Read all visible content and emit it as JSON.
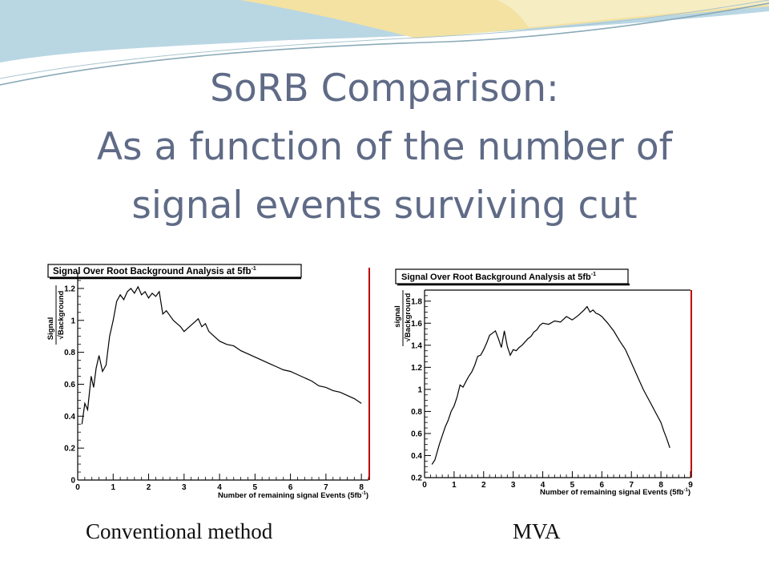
{
  "slide": {
    "title_lines": [
      "SoRB  Comparison:",
      "As a function of the number of",
      "signal events surviving cut"
    ],
    "caption_left": "Conventional method",
    "caption_right": "MVA",
    "colors": {
      "title": "#5f6b86",
      "banner_blue": "#b9d6e3",
      "banner_gold": "#f3e2a2",
      "frame_red": "#c00000"
    }
  },
  "chart_data": [
    {
      "type": "line",
      "title": "Signal Over Root Background Analysis at 5fb",
      "title_superscript": "-1",
      "ylabel_top": "Signal",
      "ylabel_bottom": "√Background",
      "xlabel": "Number of remaining signal Events (5fb",
      "xlabel_superscript": "-1",
      "xlabel_tail": ")",
      "xlim": [
        0,
        8.2
      ],
      "ylim": [
        0,
        1.3
      ],
      "xticks": [
        0,
        1,
        2,
        3,
        4,
        5,
        6,
        7,
        8
      ],
      "yticks": [
        0,
        0.2,
        0.4,
        0.6,
        0.8,
        1,
        1.2
      ],
      "ytick_labels": [
        "0",
        "0.2",
        "0.4",
        "0.6",
        "0.8",
        "1",
        "1.2"
      ],
      "grid": false,
      "series": [
        {
          "x": [
            0.12,
            0.2,
            0.28,
            0.38,
            0.45,
            0.52,
            0.6,
            0.7,
            0.8,
            0.9,
            1.0,
            1.1,
            1.2,
            1.3,
            1.4,
            1.5,
            1.6,
            1.7,
            1.8,
            1.9,
            2.0,
            2.1,
            2.2,
            2.3,
            2.4,
            2.5,
            2.6,
            2.7,
            2.8,
            2.9,
            3.0,
            3.1,
            3.2,
            3.3,
            3.4,
            3.5,
            3.6,
            3.7,
            3.8,
            3.9,
            4.0,
            4.2,
            4.4,
            4.6,
            4.8,
            5.0,
            5.2,
            5.4,
            5.6,
            5.8,
            6.0,
            6.2,
            6.4,
            6.6,
            6.8,
            7.0,
            7.2,
            7.4,
            7.6,
            7.8,
            8.0
          ],
          "y": [
            0.35,
            0.48,
            0.44,
            0.65,
            0.58,
            0.7,
            0.78,
            0.68,
            0.72,
            0.9,
            1.0,
            1.12,
            1.16,
            1.13,
            1.18,
            1.2,
            1.17,
            1.21,
            1.16,
            1.18,
            1.14,
            1.17,
            1.15,
            1.18,
            1.04,
            1.06,
            1.03,
            1.0,
            0.98,
            0.96,
            0.93,
            0.95,
            0.97,
            0.99,
            1.01,
            0.96,
            0.98,
            0.93,
            0.91,
            0.89,
            0.87,
            0.85,
            0.84,
            0.81,
            0.79,
            0.77,
            0.75,
            0.73,
            0.71,
            0.69,
            0.68,
            0.66,
            0.64,
            0.62,
            0.59,
            0.58,
            0.56,
            0.55,
            0.53,
            0.51,
            0.48
          ]
        }
      ]
    },
    {
      "type": "line",
      "title": "Signal Over Root Background Analysis at 5fb",
      "title_superscript": "-1",
      "ylabel_top": "signal",
      "ylabel_bottom": "√Background",
      "xlabel": "Number of remaining signal Events (5fb",
      "xlabel_superscript": "-1",
      "xlabel_tail": ")",
      "xlim": [
        0,
        9
      ],
      "ylim": [
        0.2,
        1.9
      ],
      "xticks": [
        0,
        1,
        2,
        3,
        4,
        5,
        6,
        7,
        8,
        9
      ],
      "yticks": [
        0.2,
        0.4,
        0.6,
        0.8,
        1,
        1.2,
        1.4,
        1.6,
        1.8
      ],
      "ytick_labels": [
        "0.2",
        "0.4",
        "0.6",
        "0.8",
        "1",
        "1.2",
        "1.4",
        "1.6",
        "1.8"
      ],
      "grid": false,
      "series": [
        {
          "x": [
            0.25,
            0.35,
            0.5,
            0.6,
            0.7,
            0.8,
            0.9,
            1.0,
            1.1,
            1.2,
            1.3,
            1.4,
            1.5,
            1.6,
            1.7,
            1.8,
            1.9,
            2.0,
            2.1,
            2.2,
            2.3,
            2.4,
            2.5,
            2.6,
            2.7,
            2.8,
            2.9,
            3.0,
            3.1,
            3.2,
            3.3,
            3.4,
            3.5,
            3.6,
            3.7,
            3.8,
            3.9,
            4.0,
            4.2,
            4.4,
            4.6,
            4.8,
            5.0,
            5.2,
            5.4,
            5.5,
            5.6,
            5.7,
            5.8,
            5.9,
            6.0,
            6.2,
            6.4,
            6.6,
            6.8,
            7.0,
            7.2,
            7.4,
            7.6,
            7.8,
            8.0,
            8.1,
            8.2,
            8.3
          ],
          "y": [
            0.32,
            0.36,
            0.5,
            0.58,
            0.66,
            0.72,
            0.8,
            0.85,
            0.93,
            1.04,
            1.02,
            1.07,
            1.12,
            1.16,
            1.22,
            1.3,
            1.31,
            1.36,
            1.42,
            1.49,
            1.51,
            1.53,
            1.46,
            1.38,
            1.53,
            1.39,
            1.31,
            1.36,
            1.35,
            1.38,
            1.4,
            1.43,
            1.46,
            1.48,
            1.52,
            1.54,
            1.58,
            1.6,
            1.59,
            1.62,
            1.61,
            1.66,
            1.63,
            1.67,
            1.72,
            1.75,
            1.7,
            1.72,
            1.69,
            1.68,
            1.66,
            1.6,
            1.53,
            1.44,
            1.36,
            1.24,
            1.12,
            1.0,
            0.9,
            0.8,
            0.7,
            0.62,
            0.55,
            0.47
          ]
        }
      ]
    }
  ]
}
